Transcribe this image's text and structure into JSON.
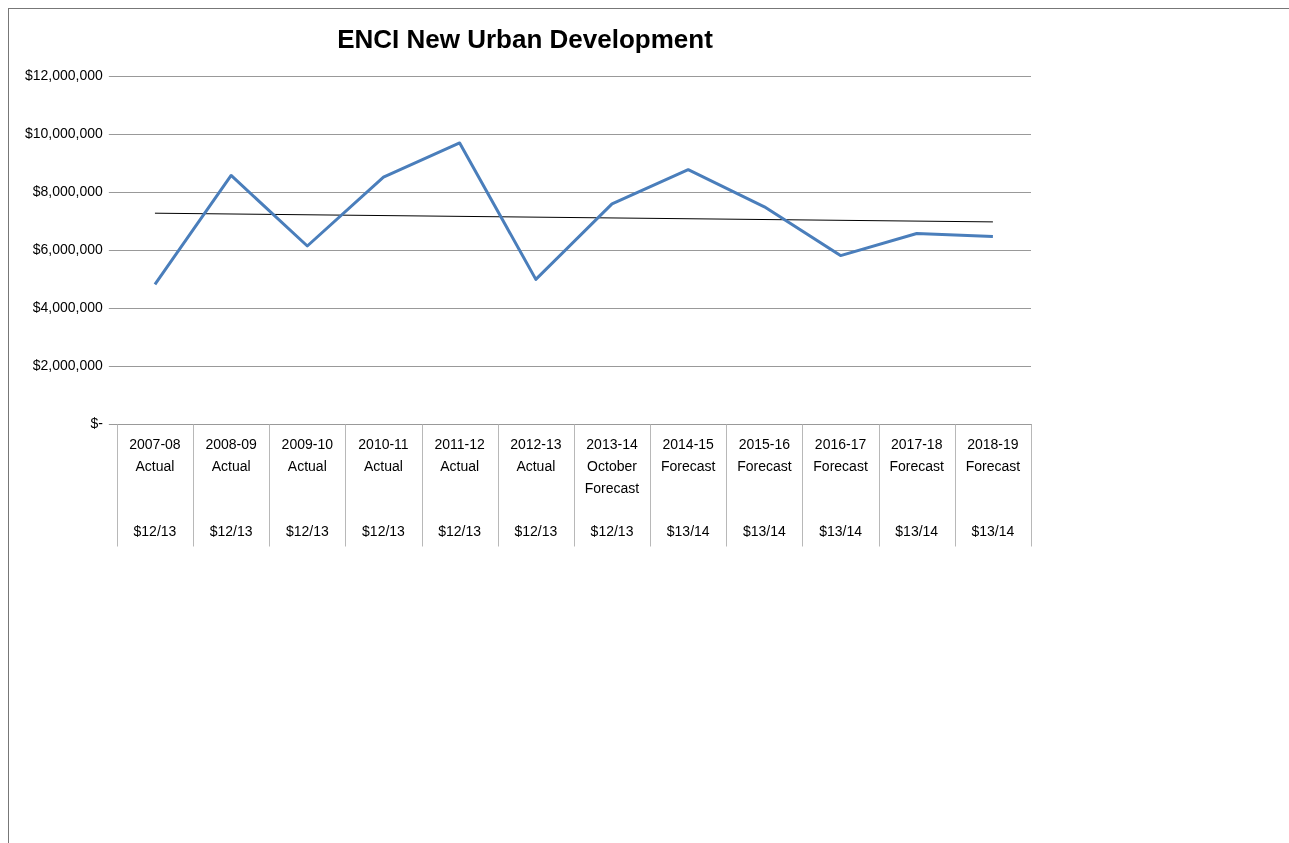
{
  "chart_data": {
    "type": "line",
    "title": "ENCI New Urban Development",
    "categories": [
      "2007-08\nActual\n$12/13",
      "2008-09\nActual\n$12/13",
      "2009-10\nActual\n$12/13",
      "2010-11\nActual\n$12/13",
      "2011-12\nActual\n$12/13",
      "2012-13\nActual\n$12/13",
      "2013-14\nOctober Forecast\n$12/13",
      "2014-15\nForecast\n$13/14",
      "2015-16\nForecast\n$13/14",
      "2016-17\nForecast\n$13/14",
      "2017-18\nForecast\n$13/14",
      "2018-19\nForecast\n$13/14"
    ],
    "series": [
      {
        "color": "#4a7ebb",
        "values": [
          4830000,
          8580000,
          6150000,
          8520000,
          9700000,
          5000000,
          7600000,
          8780000,
          7500000,
          5820000,
          6580000,
          6480000
        ]
      },
      {
        "type": "line",
        "color": "#000000",
        "values": [
          7280000,
          null,
          null,
          null,
          null,
          null,
          null,
          null,
          null,
          null,
          null,
          6980000
        ]
      }
    ],
    "ylim": [
      0,
      12000000
    ],
    "yticks": [
      {
        "value": 0,
        "label": "$-"
      },
      {
        "value": 2000000,
        "label": "$2,000,000"
      },
      {
        "value": 4000000,
        "label": "$4,000,000"
      },
      {
        "value": 6000000,
        "label": "$6,000,000"
      },
      {
        "value": 8000000,
        "label": "$8,000,000"
      },
      {
        "value": 10000000,
        "label": "$10,000,000"
      },
      {
        "value": 12000000,
        "label": "$12,000,000"
      }
    ],
    "grid": "y",
    "marker": "none",
    "line_style": "solid"
  }
}
